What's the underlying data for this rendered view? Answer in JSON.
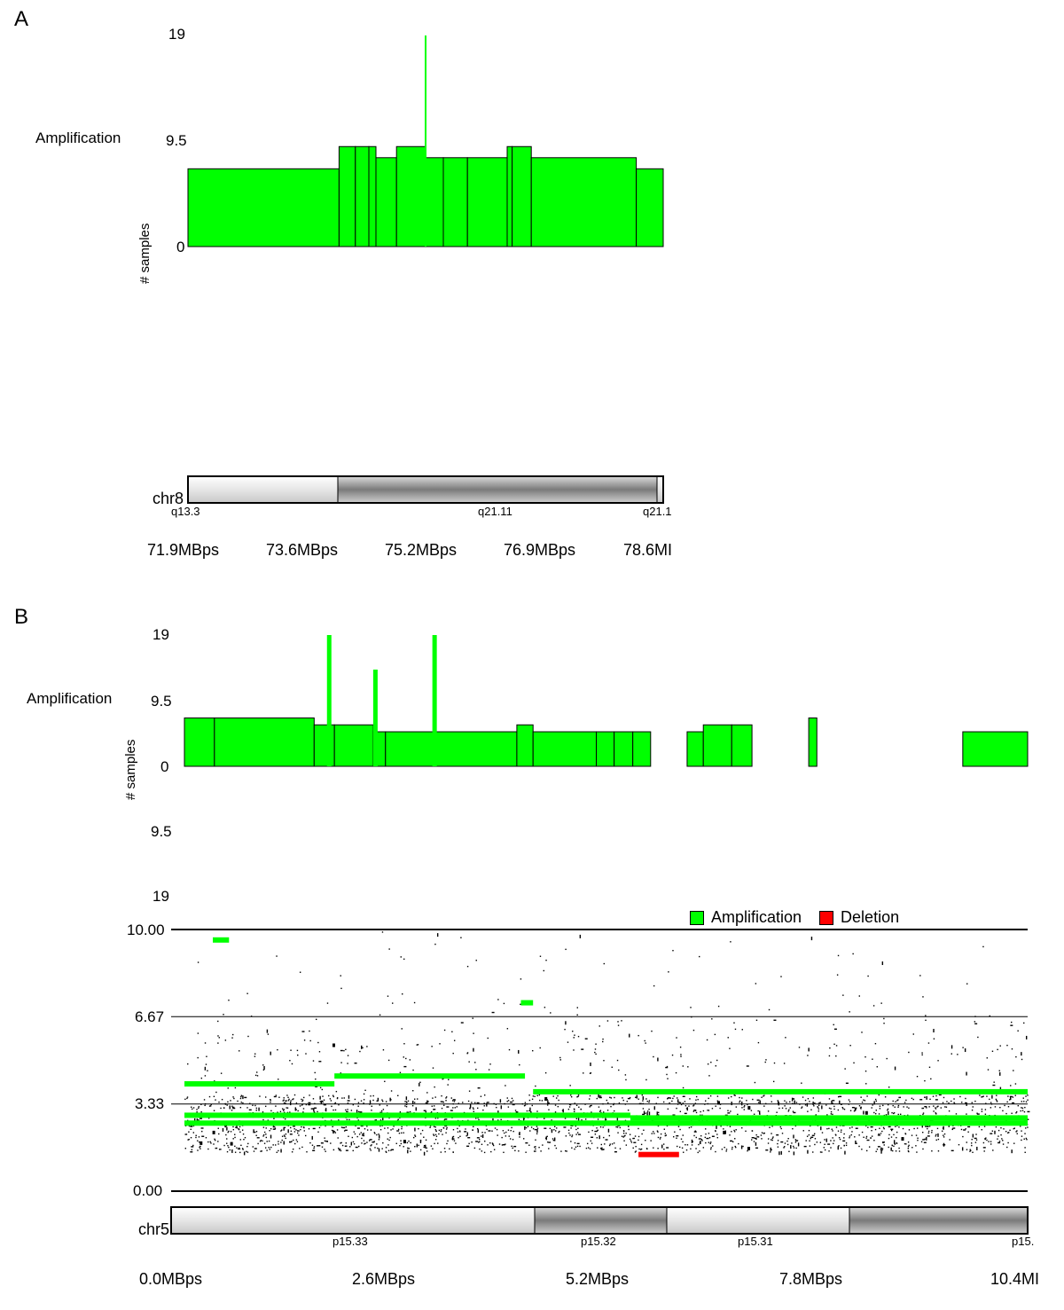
{
  "panels": {
    "A": {
      "letter": "A",
      "track_label": "Amplification",
      "ylabel": "# samples",
      "yticks": [
        "19",
        "9.5",
        "0"
      ],
      "chromosome": "chr8",
      "bands": [
        "q13.3",
        "q21.11",
        "q21.1"
      ],
      "xticks": [
        "71.9MBps",
        "73.6MBps",
        "75.2MBps",
        "76.9MBps",
        "78.6MI"
      ]
    },
    "B": {
      "letter": "B",
      "track_label": "Amplification",
      "ylabel": "# samples",
      "yticks": [
        "19",
        "9.5",
        "0"
      ],
      "del_ticks": [
        "9.5",
        "19"
      ],
      "scatter_yticks": [
        "10.00",
        "6.67",
        "3.33",
        "0.00"
      ],
      "legend": [
        {
          "label": "Amplification",
          "color": "#00ff00"
        },
        {
          "label": "Deletion",
          "color": "#ff0000"
        }
      ],
      "chromosome": "chr5",
      "bands": [
        "p15.33",
        "p15.32",
        "p15.31",
        "p15."
      ],
      "xticks": [
        "0.0MBps",
        "2.6MBps",
        "5.2MBps",
        "7.8MBps",
        "10.4MI"
      ]
    }
  },
  "chart_data": [
    {
      "type": "bar",
      "title": "",
      "ylabel": "# samples",
      "xlabel": "chr8",
      "ylim": [
        0,
        19
      ],
      "xlim": [
        71.9,
        78.6
      ],
      "series": [
        {
          "name": "Amplification",
          "color": "#00ff00",
          "segments": [
            {
              "x0": 71.9,
              "x1": 74.03,
              "y": 7
            },
            {
              "x0": 74.03,
              "x1": 74.26,
              "y": 9
            },
            {
              "x0": 74.26,
              "x1": 74.45,
              "y": 9
            },
            {
              "x0": 74.45,
              "x1": 74.55,
              "y": 9
            },
            {
              "x0": 74.55,
              "x1": 74.84,
              "y": 8
            },
            {
              "x0": 74.84,
              "x1": 75.25,
              "y": 9
            },
            {
              "x0": 75.25,
              "x1": 75.5,
              "y": 8
            },
            {
              "x0": 75.5,
              "x1": 75.84,
              "y": 8
            },
            {
              "x0": 75.84,
              "x1": 76.4,
              "y": 8
            },
            {
              "x0": 76.4,
              "x1": 76.47,
              "y": 9
            },
            {
              "x0": 76.47,
              "x1": 76.74,
              "y": 9
            },
            {
              "x0": 76.74,
              "x1": 78.22,
              "y": 8
            },
            {
              "x0": 78.22,
              "x1": 78.6,
              "y": 7
            }
          ],
          "spikes": [
            {
              "x": 75.25,
              "y": 19
            }
          ]
        }
      ]
    },
    {
      "type": "bar",
      "title": "",
      "ylabel": "# samples",
      "xlabel": "chr5",
      "ylim": [
        0,
        19
      ],
      "xlim": [
        0.0,
        10.4
      ],
      "series": [
        {
          "name": "Amplification",
          "color": "#00ff00",
          "segments": [
            {
              "x0": 0.0,
              "x1": 0.37,
              "y": 7
            },
            {
              "x0": 0.37,
              "x1": 1.6,
              "y": 7
            },
            {
              "x0": 1.6,
              "x1": 1.85,
              "y": 6
            },
            {
              "x0": 1.85,
              "x1": 2.33,
              "y": 6
            },
            {
              "x0": 2.33,
              "x1": 2.48,
              "y": 5
            },
            {
              "x0": 2.48,
              "x1": 3.07,
              "y": 5
            },
            {
              "x0": 3.07,
              "x1": 4.1,
              "y": 5
            },
            {
              "x0": 4.1,
              "x1": 4.3,
              "y": 6
            },
            {
              "x0": 4.3,
              "x1": 5.08,
              "y": 5
            },
            {
              "x0": 5.08,
              "x1": 5.3,
              "y": 5
            },
            {
              "x0": 5.3,
              "x1": 5.53,
              "y": 5
            },
            {
              "x0": 5.53,
              "x1": 5.75,
              "y": 5
            },
            {
              "x0": 6.2,
              "x1": 6.4,
              "y": 5
            },
            {
              "x0": 6.4,
              "x1": 6.75,
              "y": 6
            },
            {
              "x0": 6.75,
              "x1": 7.0,
              "y": 6
            },
            {
              "x0": 7.7,
              "x1": 7.8,
              "y": 7
            },
            {
              "x0": 9.6,
              "x1": 10.4,
              "y": 5
            }
          ],
          "spikes": [
            {
              "x": 1.78,
              "y": 19
            },
            {
              "x": 2.35,
              "y": 14
            },
            {
              "x": 3.08,
              "y": 19
            }
          ]
        }
      ]
    },
    {
      "type": "scatter",
      "title": "",
      "ylim": [
        0.0,
        10.0
      ],
      "xlim": [
        0.0,
        10.4
      ],
      "yticks": [
        0.0,
        3.33,
        6.67,
        10.0
      ],
      "series": [
        {
          "name": "Amplification",
          "color": "#00ff00",
          "segments": [
            {
              "x0": 0.0,
              "x1": 1.85,
              "y": 4.1
            },
            {
              "x0": 1.85,
              "x1": 4.2,
              "y": 4.4
            },
            {
              "x0": 4.3,
              "x1": 10.4,
              "y": 3.8
            },
            {
              "x0": 0.0,
              "x1": 5.5,
              "y": 2.9
            },
            {
              "x0": 0.0,
              "x1": 10.4,
              "y": 2.6
            },
            {
              "x0": 5.5,
              "x1": 10.4,
              "y": 2.8
            },
            {
              "x0": 0.35,
              "x1": 0.55,
              "y": 9.6
            },
            {
              "x0": 4.15,
              "x1": 4.3,
              "y": 7.2
            }
          ]
        },
        {
          "name": "Deletion",
          "color": "#ff0000",
          "segments": [
            {
              "x0": 5.6,
              "x1": 6.1,
              "y": 1.4
            }
          ]
        }
      ]
    }
  ]
}
